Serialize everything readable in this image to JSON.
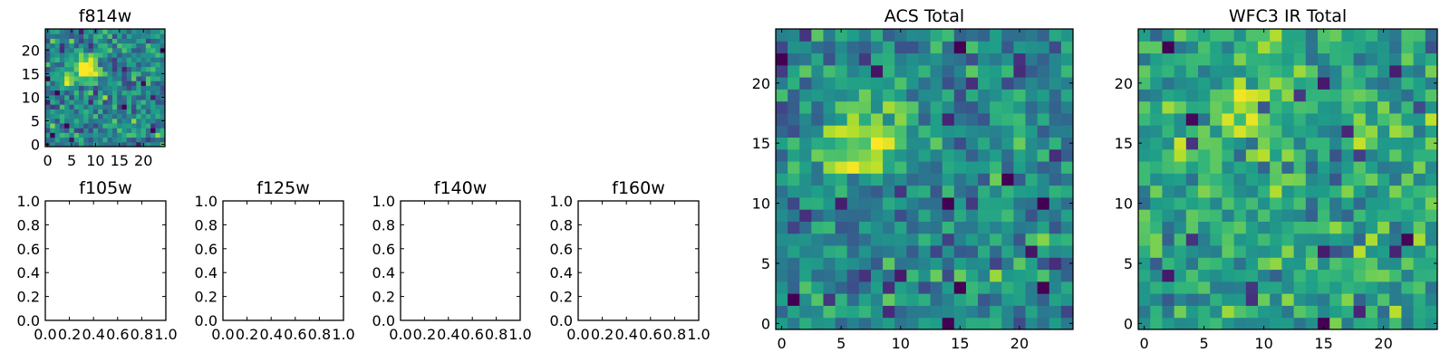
{
  "chart_data": [
    {
      "type": "heatmap",
      "title": "f814w",
      "colormap": "viridis",
      "grid": false,
      "size": 25,
      "xlim": [
        -0.5,
        24.5
      ],
      "ylim": [
        -0.5,
        24.5
      ],
      "xticks": [
        0,
        5,
        10,
        15,
        20
      ],
      "yticks": [
        0,
        5,
        10,
        15,
        20
      ],
      "blobs": [
        {
          "x": 8,
          "y": 16,
          "amplitude": 0.55,
          "sigma": 2.0
        },
        {
          "x": 4,
          "y": 14,
          "amplitude": 0.35,
          "sigma": 1.3
        }
      ],
      "background": 0.45,
      "noise": 0.18,
      "seed": 11
    },
    {
      "type": "empty",
      "title": "f105w",
      "xlim": [
        0,
        1
      ],
      "ylim": [
        0,
        1
      ],
      "xticks": [
        "0.0",
        "0.2",
        "0.4",
        "0.6",
        "0.8",
        "1.0"
      ],
      "yticks": [
        "0.0",
        "0.2",
        "0.4",
        "0.6",
        "0.8",
        "1.0"
      ]
    },
    {
      "type": "empty",
      "title": "f125w",
      "xlim": [
        0,
        1
      ],
      "ylim": [
        0,
        1
      ],
      "xticks": [
        "0.0",
        "0.2",
        "0.4",
        "0.6",
        "0.8",
        "1.0"
      ],
      "yticks": [
        "0.0",
        "0.2",
        "0.4",
        "0.6",
        "0.8",
        "1.0"
      ]
    },
    {
      "type": "empty",
      "title": "f140w",
      "xlim": [
        0,
        1
      ],
      "ylim": [
        0,
        1
      ],
      "xticks": [
        "0.0",
        "0.2",
        "0.4",
        "0.6",
        "0.8",
        "1.0"
      ],
      "yticks": [
        "0.0",
        "0.2",
        "0.4",
        "0.6",
        "0.8",
        "1.0"
      ]
    },
    {
      "type": "empty",
      "title": "f160w",
      "xlim": [
        0,
        1
      ],
      "ylim": [
        0,
        1
      ],
      "xticks": [
        "0.0",
        "0.2",
        "0.4",
        "0.6",
        "0.8",
        "1.0"
      ],
      "yticks": [
        "0.0",
        "0.2",
        "0.4",
        "0.6",
        "0.8",
        "1.0"
      ]
    },
    {
      "type": "heatmap",
      "title": "ACS Total",
      "colormap": "viridis",
      "grid": false,
      "size": 25,
      "xlim": [
        -0.5,
        24.5
      ],
      "ylim": [
        -0.5,
        24.5
      ],
      "xticks": [
        0,
        5,
        10,
        15,
        20
      ],
      "yticks": [
        0,
        5,
        10,
        15,
        20
      ],
      "blobs": [
        {
          "x": 8,
          "y": 16,
          "amplitude": 0.5,
          "sigma": 2.0
        },
        {
          "x": 4,
          "y": 14,
          "amplitude": 0.35,
          "sigma": 1.2
        }
      ],
      "background": 0.48,
      "noise": 0.17,
      "seed": 7
    },
    {
      "type": "heatmap",
      "title": "WFC3 IR Total",
      "colormap": "viridis",
      "grid": false,
      "size": 25,
      "xlim": [
        -0.5,
        24.5
      ],
      "ylim": [
        -0.5,
        24.5
      ],
      "xticks": [
        0,
        5,
        10,
        15,
        20
      ],
      "yticks": [
        0,
        5,
        10,
        15,
        20
      ],
      "blobs": [
        {
          "x": 9,
          "y": 18,
          "amplitude": 0.3,
          "sigma": 1.8
        },
        {
          "x": 12,
          "y": 12,
          "amplitude": 0.4,
          "sigma": 0.7
        },
        {
          "x": 4,
          "y": 14,
          "amplitude": 0.2,
          "sigma": 1.3
        }
      ],
      "background": 0.58,
      "noise": 0.16,
      "seed": 23
    }
  ]
}
